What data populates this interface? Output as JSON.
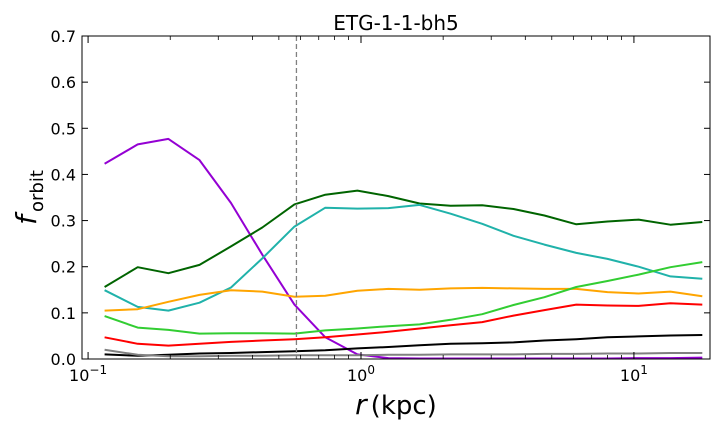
{
  "chart_data": {
    "type": "line",
    "title": "ETG-1-1-bh5",
    "xlabel": {
      "var": "r",
      "unit": "(kpc)"
    },
    "ylabel": {
      "var": "f",
      "sub": "orbit"
    },
    "xscale": "log",
    "xlim": [
      0.095,
      19
    ],
    "ylim": [
      0,
      0.7
    ],
    "x_ticks": [
      {
        "value": 0.1,
        "base": "10",
        "exp": "−1"
      },
      {
        "value": 1,
        "base": "10",
        "exp": "0"
      },
      {
        "value": 10,
        "base": "10",
        "exp": "1"
      }
    ],
    "y_ticks": [
      "0.0",
      "0.1",
      "0.2",
      "0.3",
      "0.4",
      "0.5",
      "0.6",
      "0.7"
    ],
    "grid": false,
    "vline": {
      "x": 0.58,
      "style": "dashed",
      "color": "#808080"
    },
    "x": [
      0.115,
      0.152,
      0.197,
      0.256,
      0.334,
      0.435,
      0.57,
      0.74,
      0.97,
      1.26,
      1.64,
      2.13,
      2.78,
      3.62,
      4.7,
      6.15,
      8.0,
      10.4,
      13.6,
      17.8
    ],
    "series": [
      {
        "color": "#9400d3",
        "values": [
          0.423,
          0.465,
          0.477,
          0.431,
          0.338,
          0.226,
          0.118,
          0.047,
          0.01,
          0.002,
          0.001,
          0.001,
          0.001,
          0.001,
          0.001,
          0.001,
          0.001,
          0.002,
          0.002,
          0.003
        ]
      },
      {
        "color": "#006400",
        "values": [
          0.156,
          0.199,
          0.186,
          0.204,
          0.244,
          0.285,
          0.335,
          0.356,
          0.365,
          0.353,
          0.337,
          0.332,
          0.333,
          0.325,
          0.311,
          0.292,
          0.298,
          0.302,
          0.291,
          0.297
        ]
      },
      {
        "color": "#20b2aa",
        "values": [
          0.149,
          0.113,
          0.105,
          0.122,
          0.155,
          0.218,
          0.287,
          0.328,
          0.326,
          0.327,
          0.334,
          0.315,
          0.293,
          0.267,
          0.248,
          0.23,
          0.217,
          0.2,
          0.179,
          0.174
        ]
      },
      {
        "color": "#ffa500",
        "values": [
          0.105,
          0.108,
          0.124,
          0.139,
          0.149,
          0.146,
          0.135,
          0.137,
          0.148,
          0.152,
          0.15,
          0.153,
          0.154,
          0.153,
          0.152,
          0.152,
          0.145,
          0.142,
          0.146,
          0.136
        ]
      },
      {
        "color": "#32cd32",
        "values": [
          0.093,
          0.068,
          0.063,
          0.055,
          0.056,
          0.056,
          0.055,
          0.062,
          0.066,
          0.071,
          0.075,
          0.085,
          0.097,
          0.117,
          0.134,
          0.156,
          0.169,
          0.183,
          0.199,
          0.21
        ]
      },
      {
        "color": "#ff0000",
        "values": [
          0.047,
          0.033,
          0.029,
          0.033,
          0.037,
          0.04,
          0.043,
          0.047,
          0.053,
          0.059,
          0.066,
          0.073,
          0.08,
          0.094,
          0.106,
          0.118,
          0.116,
          0.115,
          0.121,
          0.118
        ]
      },
      {
        "color": "#000000",
        "values": [
          0.01,
          0.007,
          0.009,
          0.012,
          0.013,
          0.015,
          0.017,
          0.019,
          0.023,
          0.026,
          0.03,
          0.033,
          0.034,
          0.036,
          0.04,
          0.043,
          0.047,
          0.049,
          0.051,
          0.052
        ]
      },
      {
        "color": "#808080",
        "values": [
          0.02,
          0.009,
          0.006,
          0.006,
          0.007,
          0.007,
          0.008,
          0.008,
          0.008,
          0.009,
          0.009,
          0.01,
          0.01,
          0.01,
          0.011,
          0.011,
          0.012,
          0.012,
          0.013,
          0.013
        ]
      }
    ]
  }
}
